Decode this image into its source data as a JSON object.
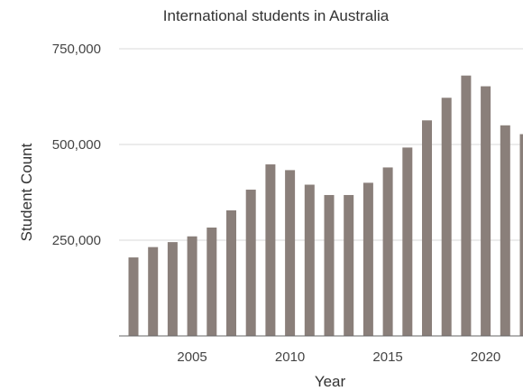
{
  "chart_data": {
    "type": "bar",
    "title": "International students in Australia",
    "xlabel": "Year",
    "ylabel": "Student Count",
    "ylim": [
      0,
      750000
    ],
    "yticks": [
      250000,
      500000,
      750000
    ],
    "ytick_labels": [
      "250,000",
      "500,000",
      "750,000"
    ],
    "xticks": [
      2005,
      2010,
      2015,
      2020
    ],
    "xtick_labels": [
      "2005",
      "2010",
      "2015",
      "2020"
    ],
    "grid": "horizontal",
    "bar_color": "#8a7f7a",
    "x": [
      2002,
      2003,
      2004,
      2005,
      2006,
      2007,
      2008,
      2009,
      2010,
      2011,
      2012,
      2013,
      2014,
      2015,
      2016,
      2017,
      2018,
      2019,
      2020,
      2021,
      2022
    ],
    "values": [
      205000,
      232000,
      245000,
      260000,
      283000,
      328000,
      382000,
      448000,
      433000,
      395000,
      368000,
      368000,
      400000,
      440000,
      492000,
      563000,
      622000,
      680000,
      652000,
      550000,
      527000
    ]
  }
}
